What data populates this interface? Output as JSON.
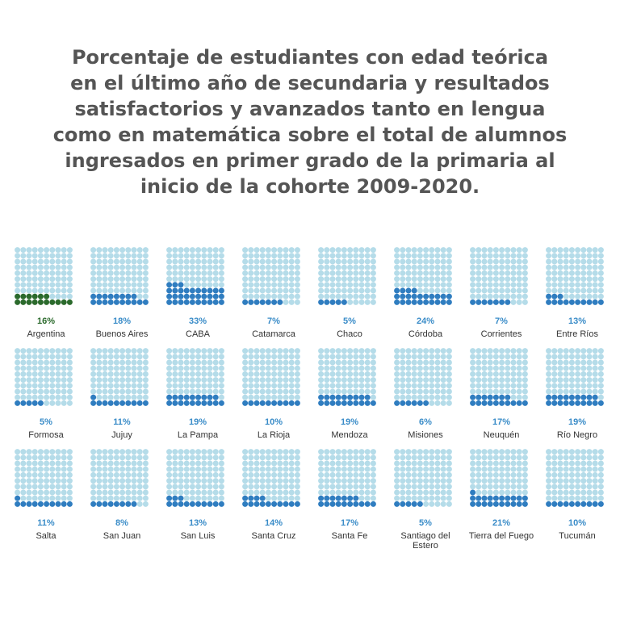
{
  "chart_data": {
    "type": "waffle",
    "title": "Porcentaje de estudiantes con edad teórica\nen el último año de secundaria y resultados\nsatisfactorios y avanzados tanto en lengua\ncomo en matemática sobre el total de alumnos\ningresados en primer grado de la primaria al\ninicio de la cohorte 2009-2020.",
    "grid": [
      10,
      10
    ],
    "colors": {
      "empty": "#b5dce9",
      "filled": "#2f7dc0",
      "highlight": "#2b6a2c",
      "pct_text": "#3a8cc8",
      "pct_highlight": "#2b6a2c"
    },
    "items": [
      {
        "name": "Argentina",
        "value": 16,
        "label": "16%",
        "highlight": true
      },
      {
        "name": "Buenos Aires",
        "value": 18,
        "label": "18%"
      },
      {
        "name": "CABA",
        "value": 33,
        "label": "33%"
      },
      {
        "name": "Catamarca",
        "value": 7,
        "label": "7%"
      },
      {
        "name": "Chaco",
        "value": 5,
        "label": "5%"
      },
      {
        "name": "Córdoba",
        "value": 24,
        "label": "24%"
      },
      {
        "name": "Corrientes",
        "value": 7,
        "label": "7%"
      },
      {
        "name": "Entre Ríos",
        "value": 13,
        "label": "13%"
      },
      {
        "name": "Formosa",
        "value": 5,
        "label": "5%"
      },
      {
        "name": "Jujuy",
        "value": 11,
        "label": "11%"
      },
      {
        "name": "La Pampa",
        "value": 19,
        "label": "19%"
      },
      {
        "name": "La Rioja",
        "value": 10,
        "label": "10%"
      },
      {
        "name": "Mendoza",
        "value": 19,
        "label": "19%"
      },
      {
        "name": "Misiones",
        "value": 6,
        "label": "6%"
      },
      {
        "name": "Neuquén",
        "value": 17,
        "label": "17%"
      },
      {
        "name": "Río Negro",
        "value": 19,
        "label": "19%"
      },
      {
        "name": "Salta",
        "value": 11,
        "label": "11%"
      },
      {
        "name": "San Juan",
        "value": 8,
        "label": "8%"
      },
      {
        "name": "San Luis",
        "value": 13,
        "label": "13%"
      },
      {
        "name": "Santa Cruz",
        "value": 14,
        "label": "14%"
      },
      {
        "name": "Santa Fe",
        "value": 17,
        "label": "17%"
      },
      {
        "name": "Santiago del Estero",
        "value": 5,
        "label": "5%"
      },
      {
        "name": "Tierra del Fuego",
        "value": 21,
        "label": "21%"
      },
      {
        "name": "Tucumán",
        "value": 10,
        "label": "10%"
      }
    ]
  }
}
